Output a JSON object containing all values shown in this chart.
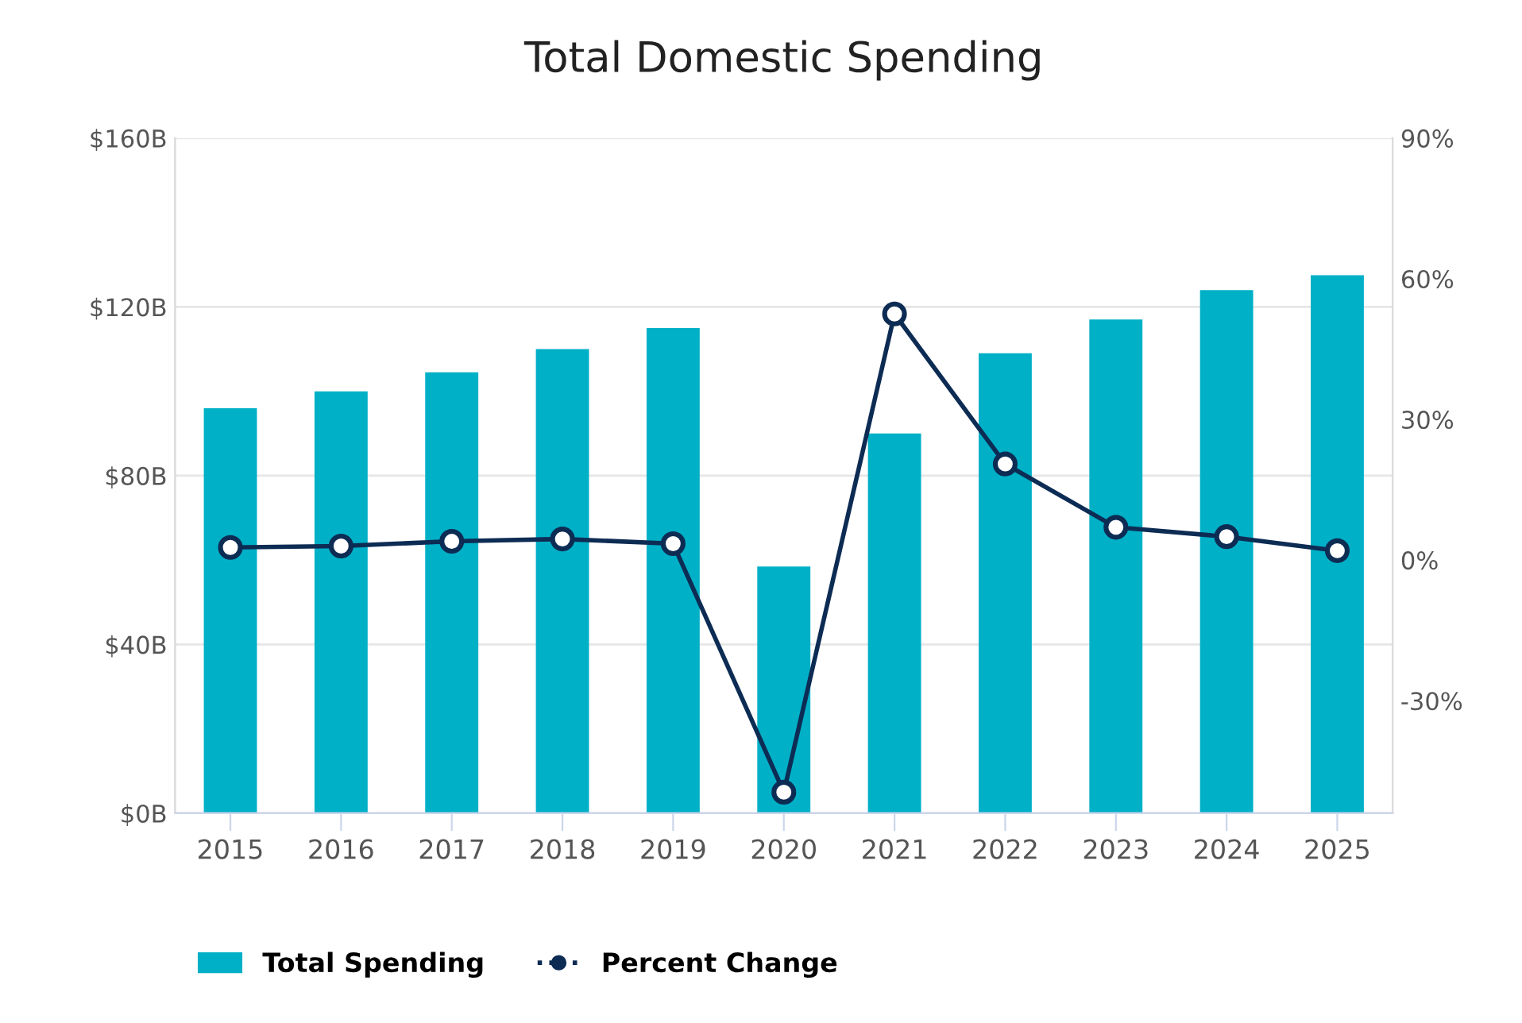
{
  "chart_data": {
    "type": "bar",
    "title": "Total Domestic Spending",
    "categories": [
      "2015",
      "2016",
      "2017",
      "2018",
      "2019",
      "2020",
      "2021",
      "2022",
      "2023",
      "2024",
      "2025"
    ],
    "series": [
      {
        "name": "Total Spending",
        "color": "#00b0c7",
        "values": [
          96,
          100,
          104.5,
          110,
          115,
          58.5,
          90,
          109,
          117,
          124,
          127.5
        ]
      },
      {
        "name": "Percent Change",
        "type": "line",
        "axis": "y2",
        "color": "#0d2c54",
        "marker": "circle",
        "values": [
          2.7,
          3,
          4,
          4.5,
          3.5,
          -49.5,
          52.5,
          20.5,
          7,
          5,
          2
        ]
      }
    ],
    "ylim": [
      0,
      160
    ],
    "yticks": [
      {
        "value": 0,
        "label": "$0B"
      },
      {
        "value": 40,
        "label": "$40B"
      },
      {
        "value": 80,
        "label": "$80B"
      },
      {
        "value": 120,
        "label": "$120B"
      },
      {
        "value": 160,
        "label": "$160B"
      }
    ],
    "y2lim": [
      -54,
      90
    ],
    "y2ticks": [
      {
        "value": -30,
        "label": "-30%"
      },
      {
        "value": 0,
        "label": "0%"
      },
      {
        "value": 30,
        "label": "30%"
      },
      {
        "value": 60,
        "label": "60%"
      },
      {
        "value": 90,
        "label": "90%"
      }
    ],
    "grid": "y",
    "legend": "bottom left"
  }
}
